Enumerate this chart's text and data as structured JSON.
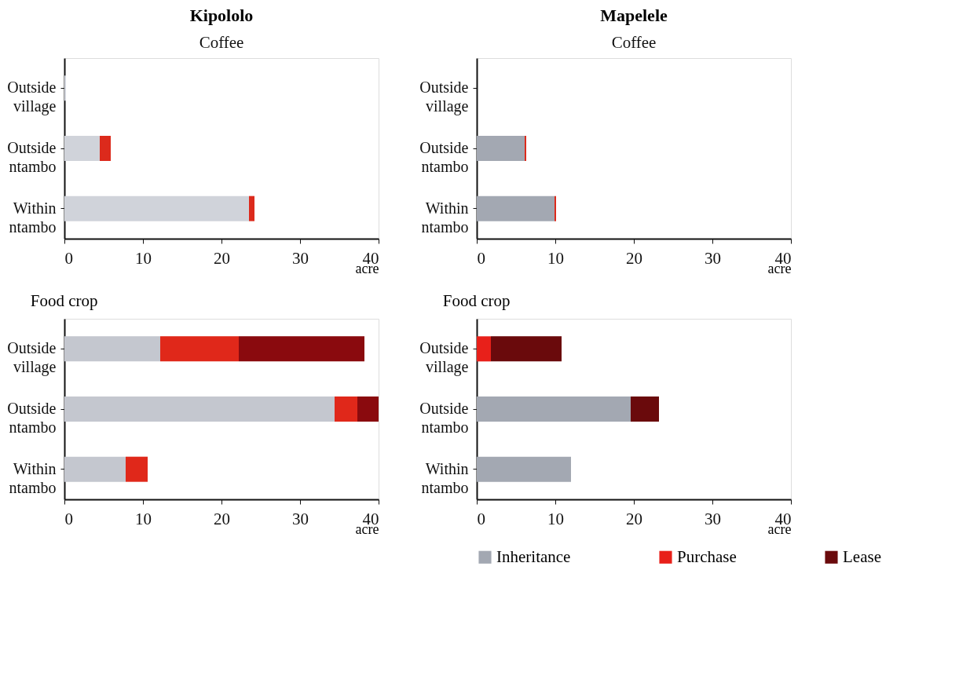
{
  "chart_data": [
    {
      "type": "bar",
      "orientation": "horizontal",
      "stacked": true,
      "title": "Kipololo",
      "subtitle": "Coffee",
      "xlabel": "acre",
      "categories": [
        "Outside village",
        "Outside ntambo",
        "Within ntambo"
      ],
      "xlim": [
        0,
        40
      ],
      "xticks": [
        0,
        10,
        20,
        30,
        40
      ],
      "legend": false,
      "grid": false,
      "series": [
        {
          "color": "#d0d3da",
          "values": [
            0.2,
            4.5,
            23.5
          ]
        },
        {
          "color": "#dc2a1c",
          "values": [
            0,
            1.4,
            0.7
          ]
        },
        {
          "color": "#7e0a0c",
          "values": [
            0,
            0,
            0
          ]
        }
      ]
    },
    {
      "type": "bar",
      "orientation": "horizontal",
      "stacked": true,
      "title": "Mapelele",
      "subtitle": "Coffee",
      "xlabel": "acre",
      "categories": [
        "Outside village",
        "Outside ntambo",
        "Within ntambo"
      ],
      "xlim": [
        0,
        40
      ],
      "xticks": [
        0,
        10,
        20,
        30,
        40
      ],
      "legend": false,
      "grid": false,
      "series": [
        {
          "color": "#a3a8b2",
          "values": [
            0,
            6.1,
            9.9
          ]
        },
        {
          "color": "#dc2a1c",
          "values": [
            0,
            0.2,
            0.2
          ]
        },
        {
          "color": "#7e0a0c",
          "values": [
            0,
            0,
            0
          ]
        }
      ]
    },
    {
      "type": "bar",
      "orientation": "horizontal",
      "stacked": true,
      "subtitle": "Food crop",
      "xlabel": "acre",
      "categories": [
        "Outside village",
        "Outside ntambo",
        "Within ntambo"
      ],
      "xlim": [
        0,
        40
      ],
      "xticks": [
        0,
        10,
        20,
        30,
        40
      ],
      "legend": false,
      "grid": false,
      "series": [
        {
          "color": "#c4c7cf",
          "values": [
            12.2,
            34.4,
            7.8
          ]
        },
        {
          "color": "#e0281a",
          "values": [
            10.0,
            2.9,
            2.8
          ]
        },
        {
          "color": "#8a0a0e",
          "values": [
            16.0,
            2.7,
            0
          ]
        }
      ]
    },
    {
      "type": "bar",
      "orientation": "horizontal",
      "stacked": true,
      "subtitle": "Food crop",
      "xlabel": "acre",
      "categories": [
        "Outside village",
        "Outside ntambo",
        "Within ntambo"
      ],
      "xlim": [
        0,
        40
      ],
      "xticks": [
        0,
        10,
        20,
        30,
        40
      ],
      "legend": "bottom",
      "grid": false,
      "series": [
        {
          "name": "Inheritance",
          "color": "#a3a8b2",
          "values": [
            0,
            19.6,
            12.0
          ]
        },
        {
          "name": "Purchase",
          "color": "#e8201a",
          "values": [
            1.8,
            0,
            0
          ]
        },
        {
          "name": "Lease",
          "color": "#6a0a0c",
          "values": [
            9.0,
            3.6,
            0
          ]
        }
      ]
    }
  ]
}
